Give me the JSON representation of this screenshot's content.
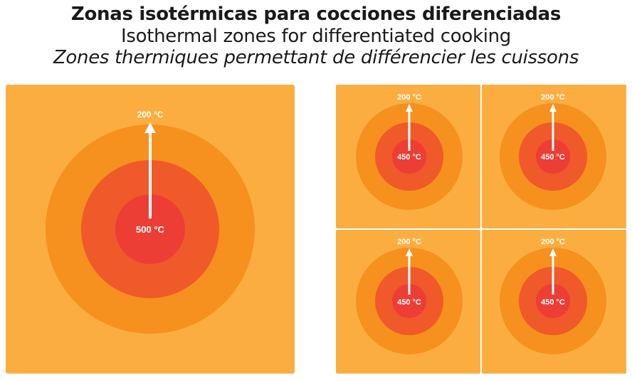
{
  "title": {
    "es": "Zonas isotérmicas para cocciones diferenciadas",
    "en": "Isothermal zones for differentiated cooking",
    "fr": "Zones thermiques permettant de différencier les cuissons"
  },
  "colors": {
    "plate": "#FBAE3F",
    "ring_outer": "#F6901E",
    "ring_mid": "#F0592A",
    "core": "#EC3E35",
    "arrow": "#FFFFFF"
  },
  "large_plate": {
    "outer_temp": "200 °C",
    "center_temp": "500 °C"
  },
  "small_plates": [
    {
      "outer_temp": "200 °C",
      "center_temp": "450 °C"
    },
    {
      "outer_temp": "200 °C",
      "center_temp": "450 °C"
    },
    {
      "outer_temp": "200 °C",
      "center_temp": "450 °C"
    },
    {
      "outer_temp": "200 °C",
      "center_temp": "450 °C"
    }
  ]
}
